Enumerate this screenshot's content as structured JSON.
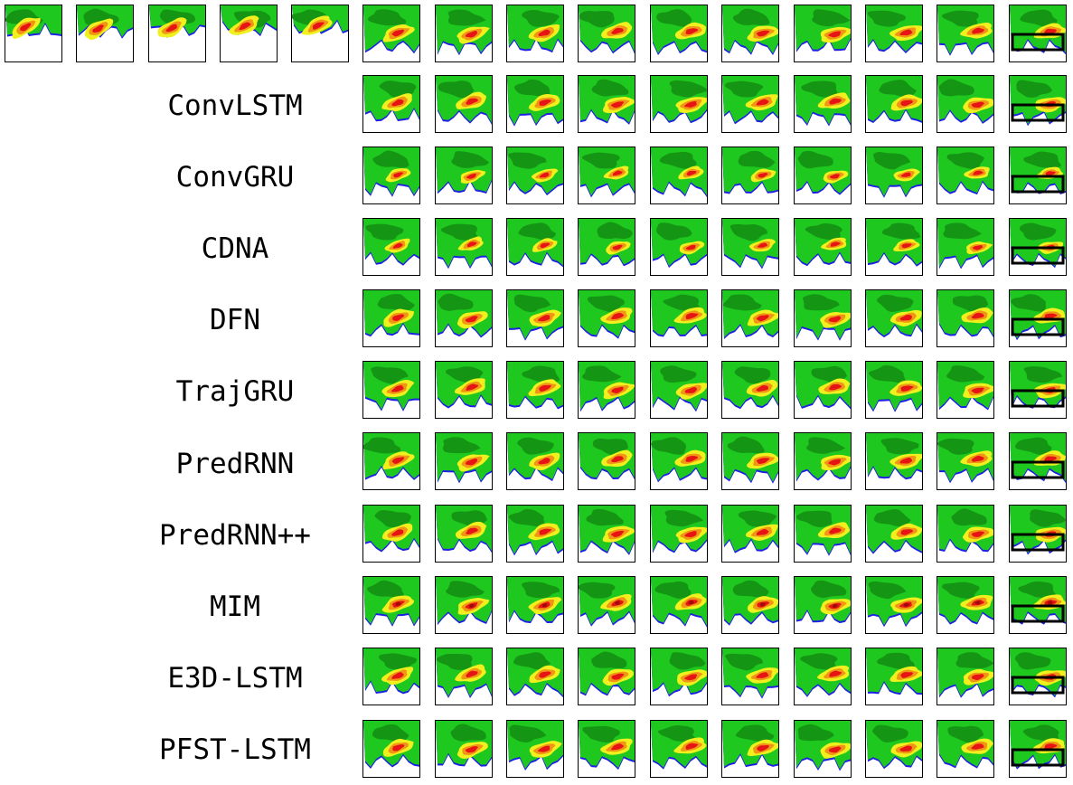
{
  "figure": {
    "ground_truth_row": {
      "input_frames": 5,
      "output_frames": 10
    },
    "model_rows": [
      {
        "label": "ConvLSTM"
      },
      {
        "label": "ConvGRU"
      },
      {
        "label": "CDNA"
      },
      {
        "label": "DFN"
      },
      {
        "label": "TrajGRU"
      },
      {
        "label": "PredRNN"
      },
      {
        "label": "PredRNN++"
      },
      {
        "label": "MIM"
      },
      {
        "label": "E3D-LSTM"
      },
      {
        "label": "PFST-LSTM"
      }
    ],
    "frames_per_model_row": 10,
    "last_column_has_highlight_box": true
  },
  "colors": {
    "background": "#ffffff",
    "dark_green": "#149614",
    "green": "#1ec81e",
    "light_green": "#36e036",
    "yellow": "#f0f01e",
    "orange": "#f09614",
    "red": "#e61414",
    "dark_red": "#a00a0a",
    "blue": "#1e1ee6",
    "highlight_box": "#000000"
  }
}
